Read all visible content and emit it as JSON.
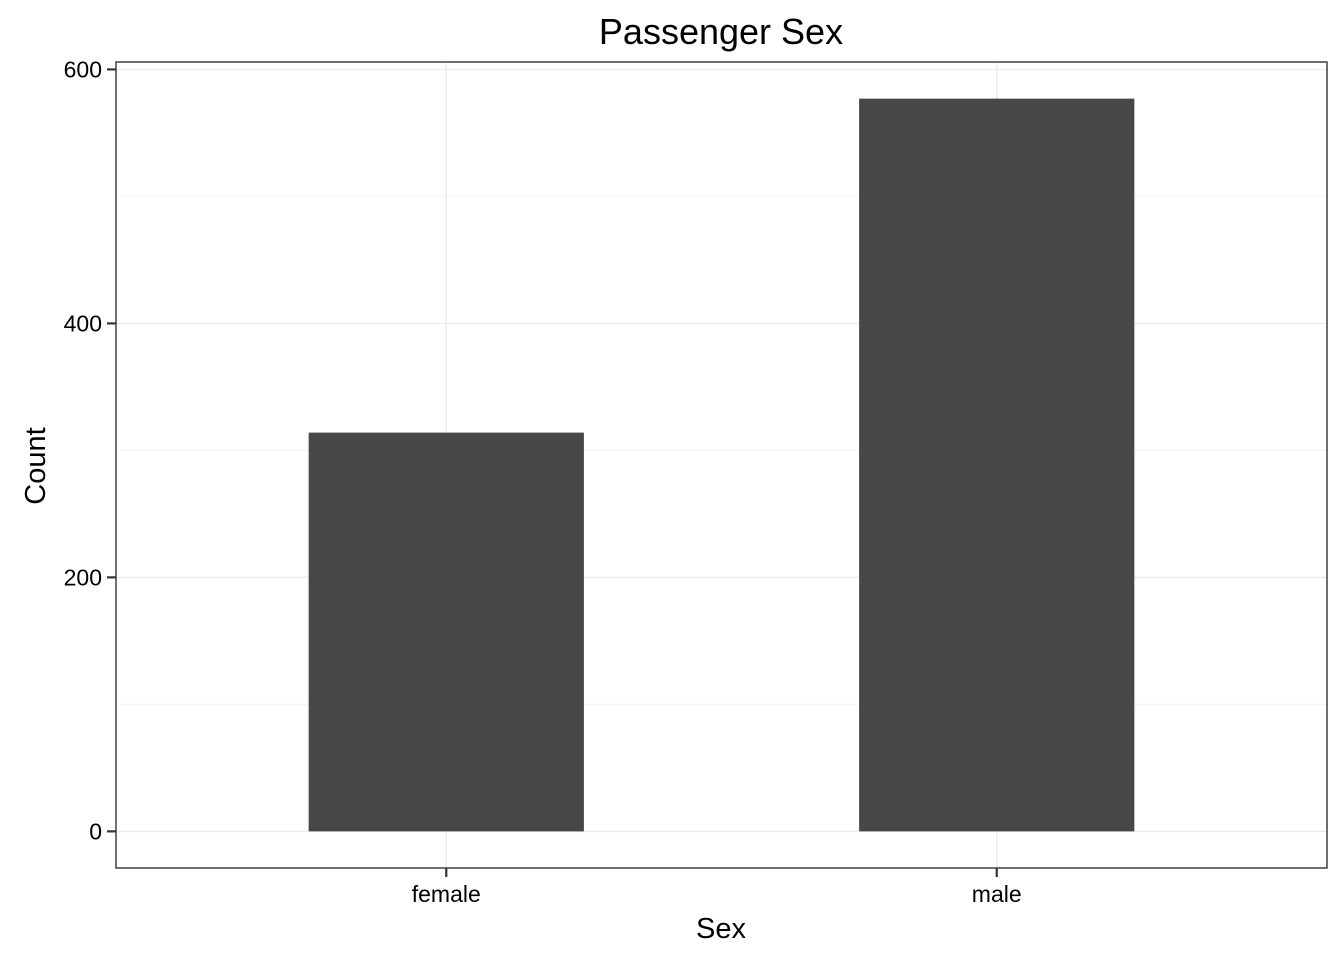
{
  "chart_data": {
    "type": "bar",
    "title": "Passenger Sex",
    "xlabel": "Sex",
    "ylabel": "Count",
    "categories": [
      "female",
      "male"
    ],
    "values": [
      314,
      577
    ],
    "ylim": [
      -28.85,
      605.85
    ],
    "yticks": [
      0,
      200,
      400,
      600
    ],
    "yticks_minor": [
      100,
      300,
      500
    ],
    "grid": true,
    "legend": "none",
    "colors": {
      "bar": "#474747",
      "grid_major": "#ebebeb",
      "grid_minor": "#f5f5f5",
      "panel_border": "#333333",
      "background": "#ffffff"
    }
  }
}
